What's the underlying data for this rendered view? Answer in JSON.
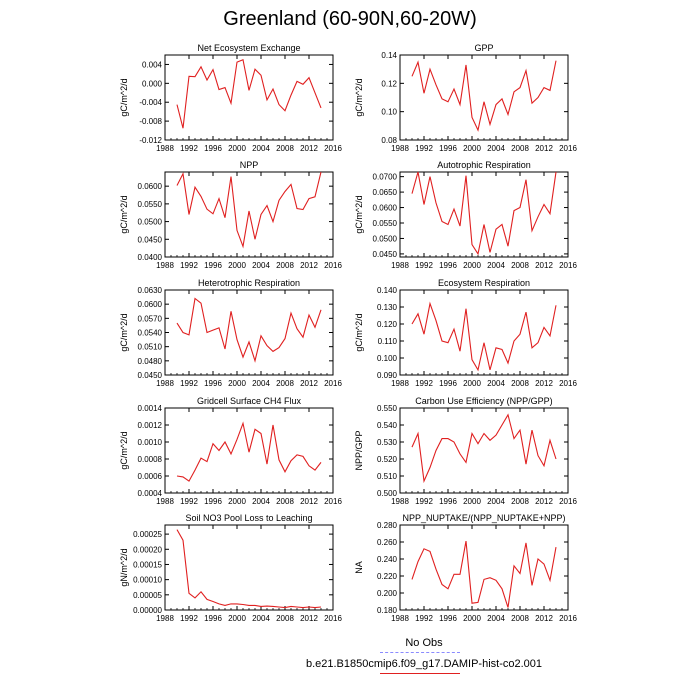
{
  "title": "Greenland (60-90N,60-20W)",
  "legend": {
    "obs_label": "No Obs",
    "obs_color": "#8a8aff",
    "case_label": "b.e21.B1850cmip6.f09_g17.DAMIP-hist-co2.001",
    "case_color": "#e02020"
  },
  "chart_data": [
    {
      "type": "line",
      "title": "Net Ecosystem Exchange",
      "ylabel": "gC/m^2/d",
      "xlim": [
        1988,
        2016
      ],
      "xticks": [
        1988,
        1992,
        1996,
        2000,
        2004,
        2008,
        2012,
        2016
      ],
      "ylim": [
        -0.012,
        0.006
      ],
      "yticks": [
        -0.012,
        -0.008,
        -0.004,
        0.0,
        0.004
      ],
      "ytick_labels": [
        "-0.012",
        "-0.008",
        "-0.004",
        "0.000",
        "0.004"
      ],
      "series": [
        {
          "x": [
            1990,
            1991,
            1992,
            1993,
            1994,
            1995,
            1996,
            1997,
            1998,
            1999,
            2000,
            2001,
            2002,
            2003,
            2004,
            2005,
            2006,
            2007,
            2008,
            2009,
            2010,
            2011,
            2012,
            2013,
            2014
          ],
          "values": [
            -0.0045,
            -0.0095,
            0.0015,
            0.0014,
            0.0035,
            0.0007,
            0.0029,
            -0.0013,
            -0.0009,
            -0.0042,
            0.0045,
            0.005,
            -0.0015,
            0.003,
            0.0017,
            -0.0035,
            -0.0012,
            -0.0045,
            -0.0058,
            -0.0025,
            0.0004,
            -0.0002,
            0.0012,
            -0.002,
            -0.0052
          ]
        }
      ]
    },
    {
      "type": "line",
      "title": "GPP",
      "ylabel": "gC/m^2/d",
      "xlim": [
        1988,
        2016
      ],
      "xticks": [
        1988,
        1992,
        1996,
        2000,
        2004,
        2008,
        2012,
        2016
      ],
      "ylim": [
        0.08,
        0.14
      ],
      "yticks": [
        0.08,
        0.1,
        0.12,
        0.14
      ],
      "ytick_labels": [
        "0.08",
        "0.10",
        "0.12",
        "0.14"
      ],
      "series": [
        {
          "x": [
            1990,
            1991,
            1992,
            1993,
            1994,
            1995,
            1996,
            1997,
            1998,
            1999,
            2000,
            2001,
            2002,
            2003,
            2004,
            2005,
            2006,
            2007,
            2008,
            2009,
            2010,
            2011,
            2012,
            2013,
            2014
          ],
          "values": [
            0.125,
            0.135,
            0.113,
            0.13,
            0.119,
            0.109,
            0.107,
            0.116,
            0.105,
            0.133,
            0.096,
            0.087,
            0.107,
            0.091,
            0.105,
            0.109,
            0.098,
            0.114,
            0.117,
            0.129,
            0.106,
            0.11,
            0.117,
            0.115,
            0.136
          ]
        }
      ]
    },
    {
      "type": "line",
      "title": "NPP",
      "ylabel": "gC/m^2/d",
      "xlim": [
        1988,
        2016
      ],
      "xticks": [
        1988,
        1992,
        1996,
        2000,
        2004,
        2008,
        2012,
        2016
      ],
      "ylim": [
        0.04,
        0.064
      ],
      "yticks": [
        0.04,
        0.045,
        0.05,
        0.055,
        0.06
      ],
      "ytick_labels": [
        "0.0400",
        "0.0450",
        "0.0500",
        "0.0550",
        "0.0600"
      ],
      "series": [
        {
          "x": [
            1990,
            1991,
            1992,
            1993,
            1994,
            1995,
            1996,
            1997,
            1998,
            1999,
            2000,
            2001,
            2002,
            2003,
            2004,
            2005,
            2006,
            2007,
            2008,
            2009,
            2010,
            2011,
            2012,
            2013,
            2014
          ],
          "values": [
            0.0602,
            0.0635,
            0.052,
            0.0597,
            0.0571,
            0.0535,
            0.0522,
            0.0565,
            0.0511,
            0.0627,
            0.0475,
            0.043,
            0.053,
            0.045,
            0.052,
            0.0545,
            0.05,
            0.056,
            0.0585,
            0.0605,
            0.0537,
            0.0534,
            0.0565,
            0.057,
            0.064
          ]
        }
      ]
    },
    {
      "type": "line",
      "title": "Autotrophic Respiration",
      "ylabel": "gC/m^2/d",
      "xlim": [
        1988,
        2016
      ],
      "xticks": [
        1988,
        1992,
        1996,
        2000,
        2004,
        2008,
        2012,
        2016
      ],
      "ylim": [
        0.044,
        0.0715
      ],
      "yticks": [
        0.045,
        0.05,
        0.055,
        0.06,
        0.065,
        0.07
      ],
      "ytick_labels": [
        "0.0450",
        "0.0500",
        "0.0550",
        "0.0600",
        "0.0650",
        "0.0700"
      ],
      "series": [
        {
          "x": [
            1990,
            1991,
            1992,
            1993,
            1994,
            1995,
            1996,
            1997,
            1998,
            1999,
            2000,
            2001,
            2002,
            2003,
            2004,
            2005,
            2006,
            2007,
            2008,
            2009,
            2010,
            2011,
            2012,
            2013,
            2014
          ],
          "values": [
            0.0645,
            0.0715,
            0.061,
            0.07,
            0.0615,
            0.0555,
            0.0545,
            0.0595,
            0.054,
            0.0703,
            0.048,
            0.045,
            0.0545,
            0.0455,
            0.053,
            0.0545,
            0.0475,
            0.059,
            0.06,
            0.069,
            0.0525,
            0.057,
            0.061,
            0.058,
            0.0715
          ]
        }
      ]
    },
    {
      "type": "line",
      "title": "Heterotrophic Respiration",
      "ylabel": "gC/m^2/d",
      "xlim": [
        1988,
        2016
      ],
      "xticks": [
        1988,
        1992,
        1996,
        2000,
        2004,
        2008,
        2012,
        2016
      ],
      "ylim": [
        0.045,
        0.063
      ],
      "yticks": [
        0.045,
        0.048,
        0.051,
        0.054,
        0.057,
        0.06,
        0.063
      ],
      "ytick_labels": [
        "0.0450",
        "0.0480",
        "0.0510",
        "0.0540",
        "0.0570",
        "0.0600",
        "0.0630"
      ],
      "series": [
        {
          "x": [
            1990,
            1991,
            1992,
            1993,
            1994,
            1995,
            1996,
            1997,
            1998,
            1999,
            2000,
            2001,
            2002,
            2003,
            2004,
            2005,
            2006,
            2007,
            2008,
            2009,
            2010,
            2011,
            2012,
            2013,
            2014
          ],
          "values": [
            0.056,
            0.054,
            0.0535,
            0.0612,
            0.0602,
            0.054,
            0.0545,
            0.055,
            0.0505,
            0.0585,
            0.0525,
            0.0488,
            0.052,
            0.048,
            0.0533,
            0.0512,
            0.05,
            0.0508,
            0.0527,
            0.0581,
            0.0548,
            0.053,
            0.0577,
            0.0551,
            0.0588
          ]
        }
      ]
    },
    {
      "type": "line",
      "title": "Ecosystem Respiration",
      "ylabel": "gC/m^2/d",
      "xlim": [
        1988,
        2016
      ],
      "xticks": [
        1988,
        1992,
        1996,
        2000,
        2004,
        2008,
        2012,
        2016
      ],
      "ylim": [
        0.09,
        0.14
      ],
      "yticks": [
        0.09,
        0.1,
        0.11,
        0.12,
        0.13,
        0.14
      ],
      "ytick_labels": [
        "0.090",
        "0.100",
        "0.110",
        "0.120",
        "0.130",
        "0.140"
      ],
      "series": [
        {
          "x": [
            1990,
            1991,
            1992,
            1993,
            1994,
            1995,
            1996,
            1997,
            1998,
            1999,
            2000,
            2001,
            2002,
            2003,
            2004,
            2005,
            2006,
            2007,
            2008,
            2009,
            2010,
            2011,
            2012,
            2013,
            2014
          ],
          "values": [
            0.12,
            0.126,
            0.114,
            0.132,
            0.122,
            0.11,
            0.109,
            0.117,
            0.104,
            0.129,
            0.099,
            0.093,
            0.109,
            0.093,
            0.106,
            0.105,
            0.097,
            0.11,
            0.114,
            0.127,
            0.106,
            0.109,
            0.118,
            0.113,
            0.131
          ]
        }
      ]
    },
    {
      "type": "line",
      "title": "Gridcell Surface CH4 Flux",
      "ylabel": "gC/m^2/d",
      "xlim": [
        1988,
        2016
      ],
      "xticks": [
        1988,
        1992,
        1996,
        2000,
        2004,
        2008,
        2012,
        2016
      ],
      "ylim": [
        0.0004,
        0.0014
      ],
      "yticks": [
        0.0004,
        0.0006,
        0.0008,
        0.001,
        0.0012,
        0.0014
      ],
      "ytick_labels": [
        "0.0004",
        "0.0006",
        "0.0008",
        "0.0010",
        "0.0012",
        "0.0014"
      ],
      "series": [
        {
          "x": [
            1990,
            1991,
            1992,
            1993,
            1994,
            1995,
            1996,
            1997,
            1998,
            1999,
            2000,
            2001,
            2002,
            2003,
            2004,
            2005,
            2006,
            2007,
            2008,
            2009,
            2010,
            2011,
            2012,
            2013,
            2014
          ],
          "values": [
            0.0006,
            0.00059,
            0.00054,
            0.00067,
            0.00081,
            0.00077,
            0.00098,
            0.0009,
            0.001,
            0.00086,
            0.00103,
            0.00122,
            0.00088,
            0.00115,
            0.0011,
            0.00074,
            0.0012,
            0.00079,
            0.00065,
            0.00078,
            0.00085,
            0.00083,
            0.00072,
            0.00067,
            0.00076
          ]
        }
      ]
    },
    {
      "type": "line",
      "title": "Carbon Use Efficiency (NPP/GPP)",
      "ylabel": "NPP/GPP",
      "xlim": [
        1988,
        2016
      ],
      "xticks": [
        1988,
        1992,
        1996,
        2000,
        2004,
        2008,
        2012,
        2016
      ],
      "ylim": [
        0.5,
        0.55
      ],
      "yticks": [
        0.5,
        0.51,
        0.52,
        0.53,
        0.54,
        0.55
      ],
      "ytick_labels": [
        "0.500",
        "0.510",
        "0.520",
        "0.530",
        "0.540",
        "0.550"
      ],
      "series": [
        {
          "x": [
            1990,
            1991,
            1992,
            1993,
            1994,
            1995,
            1996,
            1997,
            1998,
            1999,
            2000,
            2001,
            2002,
            2003,
            2004,
            2005,
            2006,
            2007,
            2008,
            2009,
            2010,
            2011,
            2012,
            2013,
            2014
          ],
          "values": [
            0.527,
            0.535,
            0.507,
            0.515,
            0.525,
            0.532,
            0.532,
            0.53,
            0.523,
            0.518,
            0.535,
            0.529,
            0.535,
            0.531,
            0.534,
            0.54,
            0.546,
            0.532,
            0.537,
            0.517,
            0.537,
            0.522,
            0.516,
            0.531,
            0.52
          ]
        }
      ]
    },
    {
      "type": "line",
      "title": "Soil NO3 Pool Loss to Leaching",
      "ylabel": "gN/m^2/d",
      "xlim": [
        1988,
        2016
      ],
      "xticks": [
        1988,
        1992,
        1996,
        2000,
        2004,
        2008,
        2012,
        2016
      ],
      "ylim": [
        0.0,
        0.00028
      ],
      "yticks": [
        0.0,
        5e-05,
        0.0001,
        0.00015,
        0.0002,
        0.00025
      ],
      "ytick_labels": [
        "0.00000",
        "0.00005",
        "0.00010",
        "0.00015",
        "0.00020",
        "0.00025"
      ],
      "series": [
        {
          "x": [
            1990,
            1991,
            1992,
            1993,
            1994,
            1995,
            1996,
            1997,
            1998,
            1999,
            2000,
            2001,
            2002,
            2003,
            2004,
            2005,
            2006,
            2007,
            2008,
            2009,
            2010,
            2011,
            2012,
            2013,
            2014
          ],
          "values": [
            0.000265,
            0.00023,
            5.5e-05,
            4e-05,
            6e-05,
            3.5e-05,
            2.8e-05,
            2e-05,
            1.5e-05,
            2e-05,
            2e-05,
            1.8e-05,
            1.5e-05,
            1.5e-05,
            1.2e-05,
            1.3e-05,
            1.2e-05,
            1e-05,
            8e-06,
            1.2e-05,
            1e-05,
            8e-06,
            1e-05,
            8e-06,
            1e-05
          ]
        }
      ]
    },
    {
      "type": "line",
      "title": "NPP_NUPTAKE/(NPP_NUPTAKE+NPP)",
      "ylabel": "NA",
      "xlim": [
        1988,
        2016
      ],
      "xticks": [
        1988,
        1992,
        1996,
        2000,
        2004,
        2008,
        2012,
        2016
      ],
      "ylim": [
        0.18,
        0.28
      ],
      "yticks": [
        0.18,
        0.2,
        0.22,
        0.24,
        0.26,
        0.28
      ],
      "ytick_labels": [
        "0.180",
        "0.200",
        "0.220",
        "0.240",
        "0.260",
        "0.280"
      ],
      "series": [
        {
          "x": [
            1990,
            1991,
            1992,
            1993,
            1994,
            1995,
            1996,
            1997,
            1998,
            1999,
            2000,
            2001,
            2002,
            2003,
            2004,
            2005,
            2006,
            2007,
            2008,
            2009,
            2010,
            2011,
            2012,
            2013,
            2014
          ],
          "values": [
            0.216,
            0.237,
            0.252,
            0.249,
            0.228,
            0.21,
            0.205,
            0.222,
            0.222,
            0.261,
            0.188,
            0.189,
            0.216,
            0.218,
            0.215,
            0.205,
            0.183,
            0.232,
            0.223,
            0.259,
            0.209,
            0.24,
            0.234,
            0.215,
            0.254
          ]
        }
      ]
    }
  ]
}
